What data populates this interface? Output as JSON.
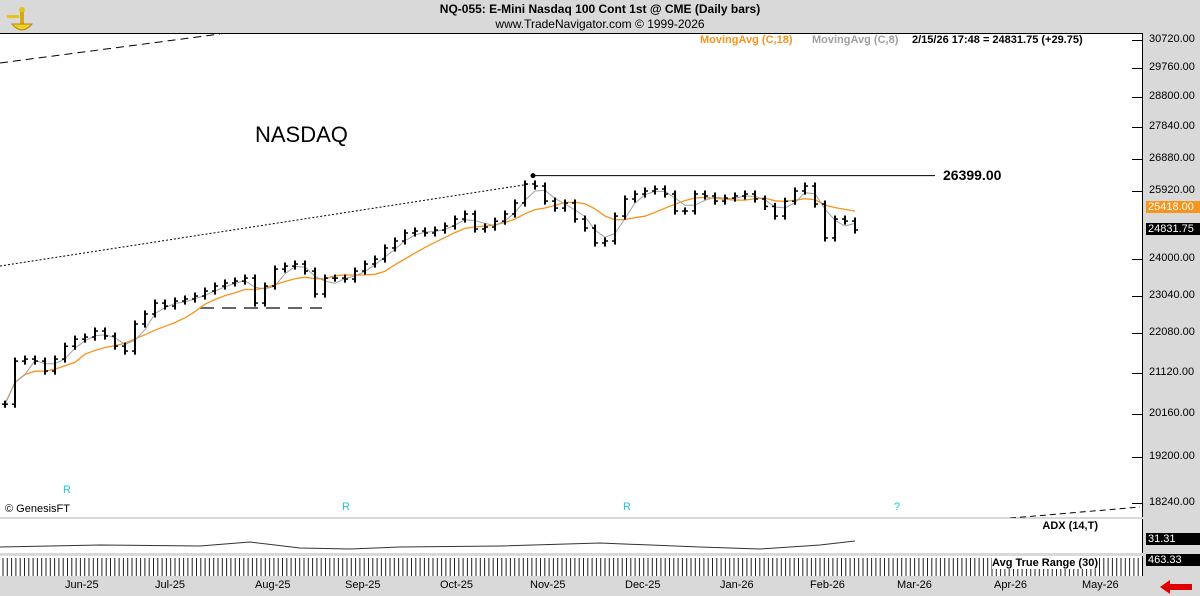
{
  "header": {
    "title": "NQ-055:  E-Mini Nasdaq 100 Cont 1st @ CME  (Daily bars)",
    "subtitle": "www.TradeNavigator.com © 1999-2026"
  },
  "legend": {
    "ma18": "MovingAvg (C,18)",
    "ma8": "MovingAvg (C,8)",
    "quote": "2/15/26 17:48 = 24831.75 (+29.75)"
  },
  "colors": {
    "ma18": "#f7941d",
    "ma8": "#a0a0a0",
    "bars": "#000000",
    "marker": "#25c6cf",
    "arrow": "#e00000"
  },
  "annotations": {
    "watermark": "NASDAQ",
    "resistance_label": "26399.00",
    "copyright": "© GenesisFT"
  },
  "markers": [
    {
      "icon": "diamond-r-icon",
      "glyph": "R"
    },
    {
      "icon": "diamond-r-icon",
      "glyph": "R"
    },
    {
      "icon": "diamond-r-icon",
      "glyph": "R"
    },
    {
      "icon": "diamond-question-icon",
      "glyph": "?"
    }
  ],
  "indicators": {
    "adx_label": "ADX (14,T)",
    "adx_value": "31.31",
    "atr_label": "Avg True Range (30)",
    "atr_value": "463.33"
  },
  "price_tags": {
    "ma18": "25418.00",
    "last": "24831.75"
  },
  "chart_data": {
    "type": "ohlc-bar",
    "scale": "log",
    "ylim": [
      18240,
      30720
    ],
    "yticks": [
      "30720.00",
      "29760.00",
      "28800.00",
      "27840.00",
      "26880.00",
      "25920.00",
      "24000.00",
      "23040.00",
      "22080.00",
      "21120.00",
      "20160.00",
      "19200.00",
      "18240.00"
    ],
    "xticks": [
      "Jun-25",
      "Jul-25",
      "Aug-25",
      "Sep-25",
      "Oct-25",
      "Nov-25",
      "Dec-25",
      "Jan-26",
      "Feb-26",
      "Mar-26",
      "Apr-26",
      "May-26"
    ],
    "resistance": 26399.0,
    "closes": [
      20410,
      21424,
      21473,
      21424,
      21185,
      21473,
      21785,
      21961,
      22011,
      22162,
      22036,
      21789,
      21667,
      22337,
      22591,
      22871,
      22794,
      22923,
      22975,
      23052,
      23182,
      23313,
      23393,
      23444,
      23523,
      22871,
      23313,
      23763,
      23843,
      23898,
      23710,
      23104,
      23523,
      23523,
      23497,
      23710,
      23898,
      24032,
      24334,
      24526,
      24748,
      24803,
      24748,
      24830,
      24943,
      25140,
      25283,
      24859,
      24914,
      25080,
      25283,
      25598,
      26152,
      26091,
      25654,
      25452,
      25598,
      25139,
      24886,
      24471,
      24526,
      25224,
      25713,
      25858,
      25946,
      26004,
      25858,
      25368,
      25368,
      25858,
      25800,
      25654,
      25741,
      25800,
      25858,
      25713,
      25500,
      25224,
      25650,
      25946,
      26091,
      25568,
      24610,
      25139,
      25083,
      24831.75
    ],
    "series": [
      {
        "name": "MovingAvg (C,18)",
        "period": 18
      },
      {
        "name": "MovingAvg (C,8)",
        "period": 8
      }
    ]
  }
}
